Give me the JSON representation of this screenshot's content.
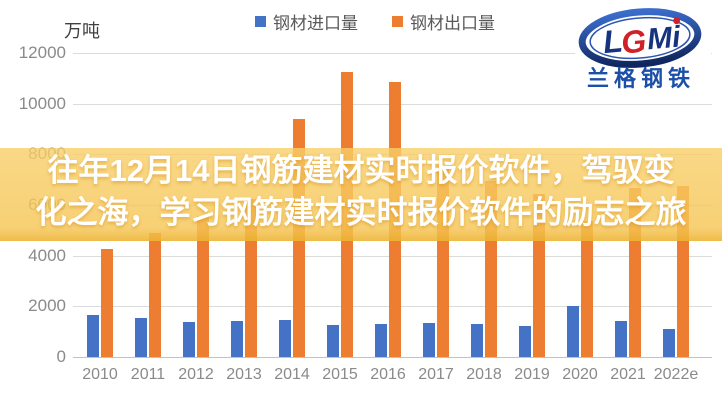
{
  "chart": {
    "unit_label": "万吨"
  },
  "chart_data": {
    "type": "bar",
    "categories": [
      "2010",
      "2011",
      "2012",
      "2013",
      "2014",
      "2015",
      "2016",
      "2017",
      "2018",
      "2019",
      "2020",
      "2021",
      "2022e"
    ],
    "series": [
      {
        "name": "钢材进口量",
        "color": "#4472C4",
        "values": [
          1643,
          1558,
          1366,
          1408,
          1443,
          1278,
          1321,
          1330,
          1317,
          1230,
          2023,
          1427,
          1100
        ]
      },
      {
        "name": "钢材出口量",
        "color": "#ED7D31",
        "values": [
          4256,
          4888,
          5573,
          6234,
          9378,
          11240,
          10843,
          7541,
          6934,
          6429,
          5367,
          6690,
          6732
        ]
      }
    ],
    "title": "",
    "xlabel": "",
    "ylabel": "万吨",
    "ylim": [
      0,
      12000
    ],
    "ytick_step": 2000,
    "grid": true,
    "legend_position": "top"
  },
  "overlay": {
    "line1": "往年12月14日钢筋建材实时报价软件，驾驭变",
    "line2": "化之海，学习钢筋建材实时报价软件的励志之旅",
    "band_color": "#F6C656"
  },
  "logo": {
    "brand": "LGMi",
    "name": "兰格钢铁",
    "ring_color": "#16337E",
    "accent_color": "#D22028",
    "name_color": "#1C50A8"
  }
}
